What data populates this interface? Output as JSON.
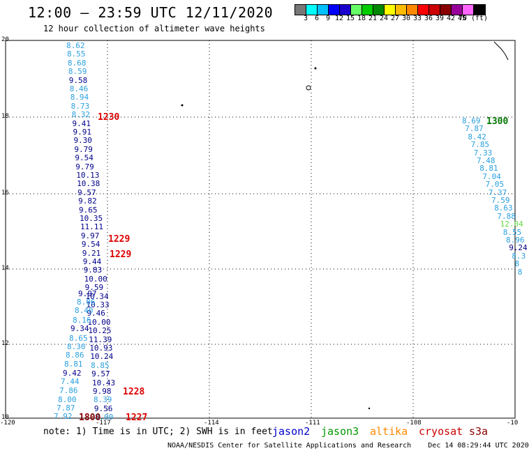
{
  "header": {
    "title": "12:00 – 23:59 UTC 12/11/2020",
    "subtitle": "12 hour collection of altimeter wave heights"
  },
  "colorbar": {
    "colors": [
      "#777777",
      "#00ffff",
      "#00c0ff",
      "#0000ff",
      "#1a00cc",
      "#66ff66",
      "#00cc00",
      "#008800",
      "#ffff00",
      "#ffbb00",
      "#ff8800",
      "#ff0000",
      "#cc0000",
      "#880000",
      "#990099",
      "#ff66ff",
      "#000000"
    ],
    "labels": [
      "3",
      "6",
      "9",
      "12",
      "15",
      "18",
      "21",
      "24",
      "27",
      "30",
      "33",
      "36",
      "39",
      "42",
      "45",
      "70 (ft)"
    ]
  },
  "map": {
    "x_ticks": [
      "-120",
      "-117",
      "-114",
      "-111",
      "-108",
      "-10"
    ],
    "y_ticks": [
      "20",
      "18",
      "16",
      "14",
      "12",
      "10"
    ]
  },
  "track_left": [
    {
      "v": "8.62",
      "c": "#2aa0e0"
    },
    {
      "v": "8.55",
      "c": "#2aa0e0"
    },
    {
      "v": "8.68",
      "c": "#2aa0e0"
    },
    {
      "v": "8.59",
      "c": "#2aa0e0"
    },
    {
      "v": "9.58",
      "c": "#00008b"
    },
    {
      "v": "8.46",
      "c": "#2aa0e0"
    },
    {
      "v": "8.94",
      "c": "#2aa0e0"
    },
    {
      "v": "8.73",
      "c": "#2aa0e0"
    },
    {
      "v": "8.32",
      "c": "#2aa0e0"
    },
    {
      "v": "9.41",
      "c": "#00008b"
    },
    {
      "v": "9.91",
      "c": "#00008b"
    },
    {
      "v": "9.30",
      "c": "#00008b"
    },
    {
      "v": "9.79",
      "c": "#00008b"
    },
    {
      "v": "9.54",
      "c": "#00008b"
    },
    {
      "v": "9.79",
      "c": "#00008b"
    },
    {
      "v": "10.13",
      "c": "#00008b"
    },
    {
      "v": "10.38",
      "c": "#00008b"
    },
    {
      "v": "9.57",
      "c": "#00008b"
    },
    {
      "v": "9.82",
      "c": "#00008b"
    },
    {
      "v": "9.65",
      "c": "#00008b"
    },
    {
      "v": "10.35",
      "c": "#00008b"
    },
    {
      "v": "11.11",
      "c": "#00008b"
    },
    {
      "v": "9.97",
      "c": "#00008b"
    },
    {
      "v": "9.54",
      "c": "#00008b"
    },
    {
      "v": "9.21",
      "c": "#00008b"
    },
    {
      "v": "9.44",
      "c": "#00008b"
    },
    {
      "v": "9.83",
      "c": "#00008b"
    },
    {
      "v": "10.00",
      "c": "#00008b"
    },
    {
      "v": "9.59",
      "c": "#00008b"
    },
    {
      "v": "10.34",
      "c": "#00008b"
    },
    {
      "v": "10.33",
      "c": "#00008b"
    },
    {
      "v": "9.46",
      "c": "#00008b"
    },
    {
      "v": "10.00",
      "c": "#00008b"
    },
    {
      "v": "10.25",
      "c": "#00008b"
    },
    {
      "v": "11.39",
      "c": "#00008b"
    },
    {
      "v": "10.93",
      "c": "#00008b"
    },
    {
      "v": "10.24",
      "c": "#00008b"
    },
    {
      "v": "8.85",
      "c": "#2aa0e0"
    },
    {
      "v": "9.57",
      "c": "#00008b"
    },
    {
      "v": "10.43",
      "c": "#00008b"
    },
    {
      "v": "9.98",
      "c": "#00008b"
    },
    {
      "v": "8.39",
      "c": "#2aa0e0"
    },
    {
      "v": "9.56",
      "c": "#00008b"
    },
    {
      "v": "8.00",
      "c": "#2aa0e0"
    }
  ],
  "track_left2": [
    {
      "v": "9.97",
      "c": "#00008b"
    },
    {
      "v": "8.06",
      "c": "#2aa0e0"
    },
    {
      "v": "8.40",
      "c": "#2aa0e0"
    },
    {
      "v": "8.16",
      "c": "#2aa0e0"
    },
    {
      "v": "9.34",
      "c": "#00008b"
    },
    {
      "v": "8.65",
      "c": "#2aa0e0"
    },
    {
      "v": "8.30",
      "c": "#2aa0e0"
    },
    {
      "v": "8.86",
      "c": "#2aa0e0"
    },
    {
      "v": "8.81",
      "c": "#2aa0e0"
    },
    {
      "v": "9.42",
      "c": "#00008b"
    },
    {
      "v": "7.44",
      "c": "#2aa0e0"
    },
    {
      "v": "7.86",
      "c": "#2aa0e0"
    },
    {
      "v": "8.00",
      "c": "#2aa0e0"
    },
    {
      "v": "7.87",
      "c": "#2aa0e0"
    },
    {
      "v": "7.92",
      "c": "#2aa0e0"
    }
  ],
  "track_right": [
    {
      "v": "8.69",
      "c": "#2aa0e0"
    },
    {
      "v": "7.87",
      "c": "#2aa0e0"
    },
    {
      "v": "8.42",
      "c": "#2aa0e0"
    },
    {
      "v": "7.85",
      "c": "#2aa0e0"
    },
    {
      "v": "7.33",
      "c": "#2aa0e0"
    },
    {
      "v": "7.48",
      "c": "#2aa0e0"
    },
    {
      "v": "8.81",
      "c": "#2aa0e0"
    },
    {
      "v": "7.04",
      "c": "#2aa0e0"
    },
    {
      "v": "7.05",
      "c": "#2aa0e0"
    },
    {
      "v": "7.37",
      "c": "#2aa0e0"
    },
    {
      "v": "7.59",
      "c": "#2aa0e0"
    },
    {
      "v": "8.63",
      "c": "#2aa0e0"
    },
    {
      "v": "7.88",
      "c": "#2aa0e0"
    },
    {
      "v": "12.04",
      "c": "#66dd44"
    },
    {
      "v": "8.55",
      "c": "#2aa0e0"
    },
    {
      "v": "8.96",
      "c": "#2aa0e0"
    },
    {
      "v": "9.24",
      "c": "#00008b"
    },
    {
      "v": "8.3",
      "c": "#2aa0e0"
    },
    {
      "v": "8",
      "c": "#2aa0e0"
    },
    {
      "v": "8",
      "c": "#2aa0e0"
    }
  ],
  "times": [
    {
      "t": "1230",
      "c": "#dd0000"
    },
    {
      "t": "1229",
      "c": "#dd0000"
    },
    {
      "t": "1229",
      "c": "#dd0000"
    },
    {
      "t": "1228",
      "c": "#dd0000"
    },
    {
      "t": "1227",
      "c": "#dd0000"
    },
    {
      "t": "1800",
      "c": "#880000"
    },
    {
      "t": "1300",
      "c": "#007700"
    }
  ],
  "footer": {
    "note": "note: 1) Time is in UTC; 2) SWH is in feet",
    "satellites": [
      {
        "name": "jason2",
        "color": "#0000cc"
      },
      {
        "name": "jason3",
        "color": "#009900"
      },
      {
        "name": "altika",
        "color": "#ff8800"
      },
      {
        "name": "cryosat",
        "color": "#cc0000"
      },
      {
        "name": "s3a",
        "color": "#880000"
      }
    ],
    "credit": "NOAA/NESDIS Center for Satellite Applications and Research    Dec 14 08:29:44 UTC 2020"
  }
}
